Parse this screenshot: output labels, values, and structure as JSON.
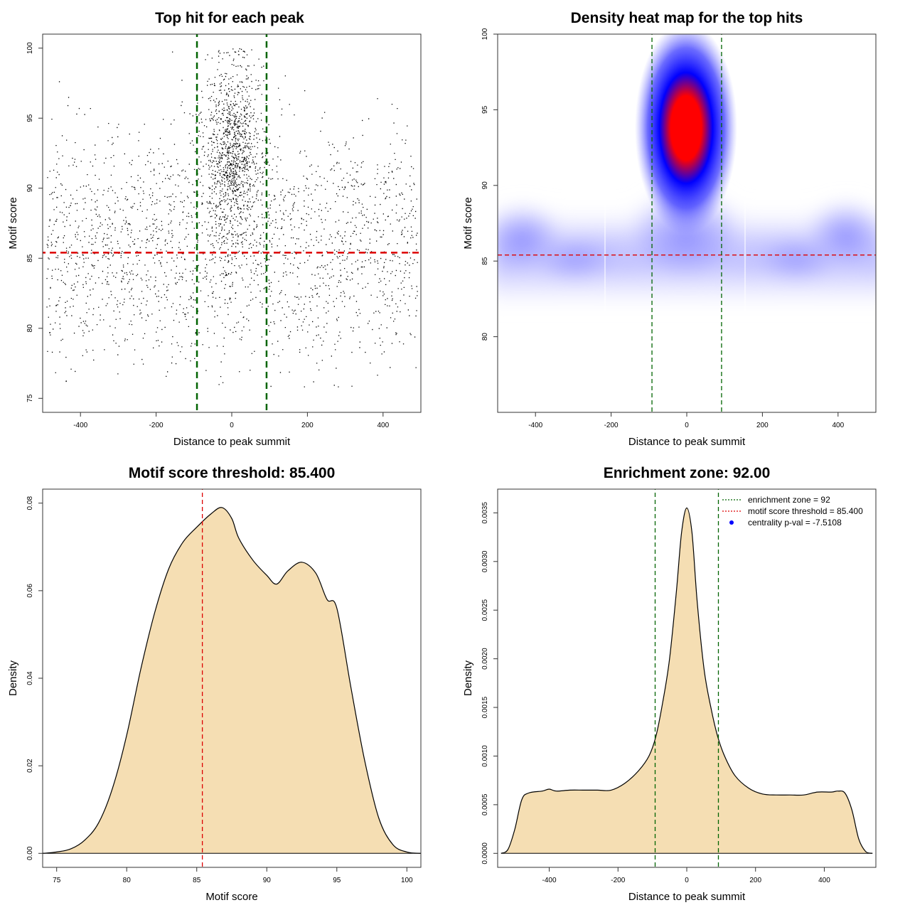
{
  "chart_data": [
    {
      "type": "scatter",
      "title": "Top hit for each peak",
      "xlabel": "Distance to peak summit",
      "ylabel": "Motif score",
      "xlim": [
        -500,
        500
      ],
      "ylim": [
        74,
        101
      ],
      "xticks": [
        -400,
        -200,
        0,
        200,
        400
      ],
      "yticks": [
        75,
        80,
        85,
        90,
        95,
        100
      ],
      "hlines": [
        {
          "y": 85.4,
          "color": "#dd0000"
        }
      ],
      "vlines": [
        {
          "x": -92,
          "color": "#006400"
        },
        {
          "x": 92,
          "color": "#006400"
        }
      ],
      "point_distribution": {
        "n_points": 9000,
        "central_fraction": 0.35,
        "central_sd_distance": 38,
        "central_score_mean": 92.5,
        "background_score_mean": 86,
        "background_sd_score": 4.2
      }
    },
    {
      "type": "heatmap",
      "title": "Density heat map for the top hits",
      "xlabel": "Distance to peak summit",
      "ylabel": "Motif score",
      "xlim": [
        -500,
        500
      ],
      "ylim": [
        75,
        100
      ],
      "xticks": [
        -400,
        -200,
        0,
        200,
        400
      ],
      "yticks": [
        80,
        85,
        90,
        95,
        100
      ],
      "hlines": [
        {
          "y": 85.4,
          "color": "#dd0000"
        }
      ],
      "vlines": [
        {
          "x": -92,
          "color": "#006400"
        },
        {
          "x": 92,
          "color": "#006400"
        }
      ],
      "colors": [
        "#ffffff",
        "#8888ff",
        "#0000ff",
        "#ff0000"
      ],
      "hotspot": {
        "x": 0,
        "y": 94
      }
    },
    {
      "type": "area",
      "title": "Motif score threshold: 85.400",
      "xlabel": "Motif score",
      "ylabel": "Density",
      "xlim": [
        74,
        101
      ],
      "ylim": [
        0,
        0.08
      ],
      "xticks": [
        75,
        80,
        85,
        90,
        95,
        100
      ],
      "yticks": [
        0.0,
        0.02,
        0.04,
        0.06,
        0.08
      ],
      "ytick_labels": [
        "0.00",
        "0.02",
        "0.04",
        "0.06",
        "0.08"
      ],
      "x": [
        74,
        75,
        76,
        77,
        78,
        79,
        80,
        81,
        82,
        83,
        84,
        85,
        86,
        86.8,
        87.5,
        88,
        89,
        90,
        90.7,
        91.5,
        92.5,
        93.5,
        94.3,
        95,
        96,
        97,
        98,
        99,
        100,
        101
      ],
      "y": [
        0.0,
        0.0003,
        0.001,
        0.003,
        0.007,
        0.015,
        0.027,
        0.042,
        0.055,
        0.065,
        0.071,
        0.0745,
        0.0775,
        0.079,
        0.0765,
        0.072,
        0.067,
        0.0635,
        0.0615,
        0.0645,
        0.0665,
        0.064,
        0.058,
        0.056,
        0.038,
        0.021,
        0.008,
        0.002,
        0.0003,
        0.0
      ],
      "fill": "#f5deb3",
      "vlines": [
        {
          "x": 85.4,
          "color": "#dd0000"
        }
      ]
    },
    {
      "type": "area",
      "title": "Enrichment zone: 92.00",
      "xlabel": "Distance to peak summit",
      "ylabel": "Density",
      "xlim": [
        -550,
        550
      ],
      "ylim": [
        0,
        0.0036
      ],
      "xticks": [
        -400,
        -200,
        0,
        200,
        400
      ],
      "yticks": [
        0.0,
        0.0005,
        0.001,
        0.0015,
        0.002,
        0.0025,
        0.003,
        0.0035
      ],
      "ytick_labels": [
        "0.0000",
        "0.0005",
        "0.0010",
        "0.0015",
        "0.0020",
        "0.0025",
        "0.0030",
        "0.0035"
      ],
      "x": [
        -540,
        -520,
        -500,
        -480,
        -460,
        -420,
        -400,
        -380,
        -340,
        -300,
        -260,
        -220,
        -180,
        -140,
        -110,
        -90,
        -70,
        -50,
        -30,
        -15,
        0,
        15,
        30,
        50,
        70,
        90,
        110,
        140,
        180,
        220,
        260,
        300,
        340,
        380,
        420,
        440,
        460,
        480,
        500,
        520,
        540
      ],
      "y": [
        0.0,
        4e-05,
        0.00025,
        0.00055,
        0.00062,
        0.00064,
        0.00066,
        0.00064,
        0.00065,
        0.00065,
        0.00065,
        0.00065,
        0.00072,
        0.00085,
        0.001,
        0.0012,
        0.00155,
        0.002,
        0.0027,
        0.0033,
        0.00355,
        0.0033,
        0.0026,
        0.0019,
        0.0015,
        0.0012,
        0.001,
        0.0008,
        0.00067,
        0.00061,
        0.0006,
        0.0006,
        0.0006,
        0.00063,
        0.00063,
        0.00064,
        0.00062,
        0.00045,
        0.00015,
        2e-05,
        0.0
      ],
      "fill": "#f5deb3",
      "vlines": [
        {
          "x": -92,
          "color": "#006400"
        },
        {
          "x": 92,
          "color": "#006400"
        }
      ],
      "legend": [
        {
          "label": "enrichment zone = 92",
          "color": "#006400",
          "style": "dotted"
        },
        {
          "label": "motif score threshold = 85.400",
          "color": "#dd0000",
          "style": "dotted"
        },
        {
          "label": "centrality p-val = -7.5108",
          "color": "#0000ff",
          "style": "point"
        }
      ],
      "legend_position": "top-right"
    }
  ]
}
